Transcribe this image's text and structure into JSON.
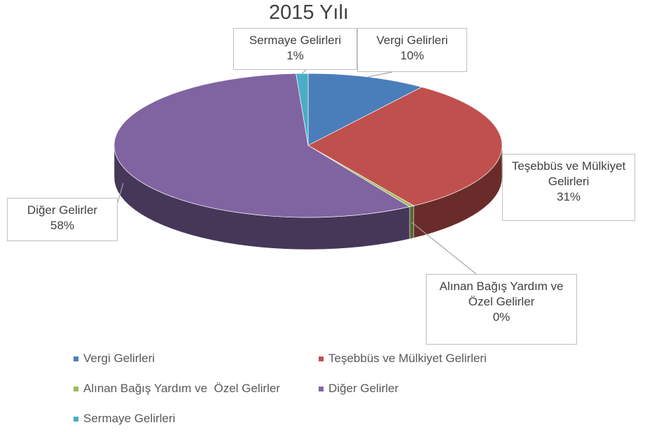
{
  "chart_data": {
    "type": "pie3d",
    "title": "2015 Yılı",
    "categories": [
      "Vergi Gelirleri",
      "Teşebbüs ve Mülkiyet Gelirleri",
      "Alınan Bağış Yardım ve  Özel Gelirler",
      "Diğer Gelirler",
      "Sermaye Gelirleri"
    ],
    "values": [
      10,
      31,
      0.4,
      58,
      1
    ],
    "value_labels": [
      "10%",
      "31%",
      "0%",
      "58%",
      "1%"
    ],
    "colors": [
      "#4a7ebb",
      "#c0504d",
      "#9bbb59",
      "#8064a2",
      "#4bacc6"
    ],
    "legend": "bottom"
  }
}
